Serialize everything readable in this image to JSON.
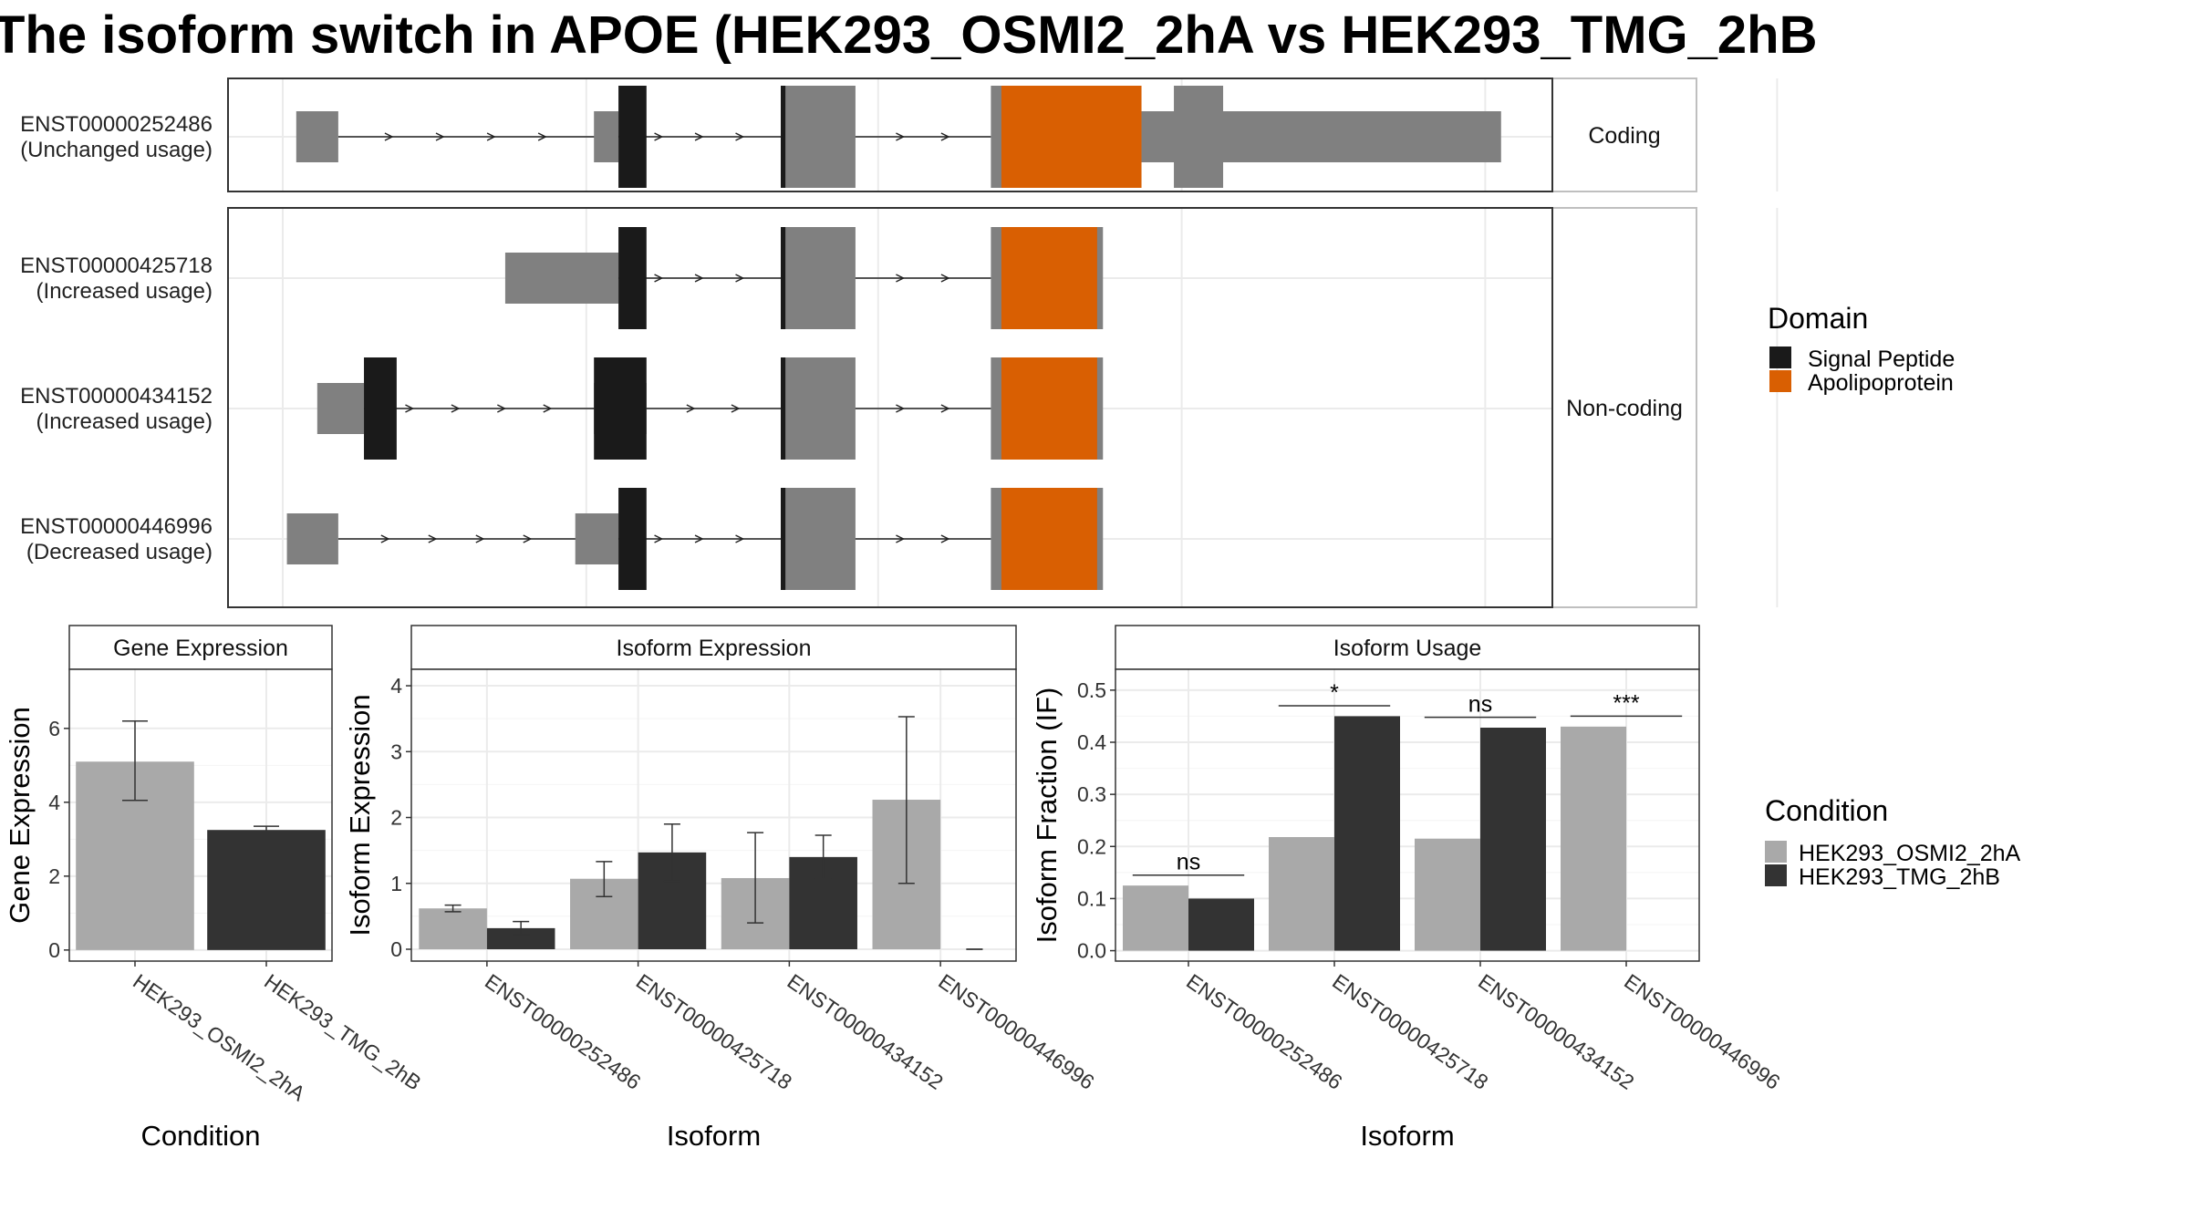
{
  "title": "The isoform switch in APOE (HEK293_OSMI2_2hA vs HEK293_TMG_2hB",
  "colors": {
    "signal_peptide": "#1a1a1a",
    "apolipoprotein": "#d95f02",
    "exon": "#808080",
    "condition_a": "#a9a9a9",
    "condition_b": "#333333",
    "grid": "#ebebeb"
  },
  "chart_data": [
    {
      "type": "gene-structure",
      "legend_title": "Domain",
      "legend": [
        "Signal Peptide",
        "Apolipoprotein"
      ],
      "coordinate_range": [
        0,
        100
      ],
      "groups": [
        {
          "name": "Coding",
          "transcripts": [
            0
          ]
        },
        {
          "name": "Non-coding",
          "transcripts": [
            1,
            2,
            3
          ]
        }
      ],
      "transcripts": [
        {
          "id": "ENST00000252486",
          "usage": "(Unchanged usage)",
          "exons": [
            [
              1.0,
              4.6
            ],
            [
              26.5,
              28.6
            ],
            [
              42.5,
              48.9
            ],
            [
              60.5,
              73.4
            ]
          ],
          "utr": [
            [
              73.4,
              104.2
            ]
          ],
          "domains": [
            {
              "type": "Signal Peptide",
              "range": [
                28.6,
                31.0
              ]
            },
            {
              "type": "Signal Peptide",
              "range": [
                42.5,
                42.9
              ]
            },
            {
              "type": "Apolipoprotein",
              "range": [
                61.4,
                73.4
              ]
            }
          ],
          "thick_until": [
            76.8,
            104.2
          ]
        },
        {
          "id": "ENST00000425718",
          "usage": "(Increased usage)",
          "exons": [
            [
              18.9,
              28.6
            ],
            [
              42.5,
              48.9
            ],
            [
              60.5,
              70.1
            ]
          ],
          "utr": [],
          "domains": [
            {
              "type": "Signal Peptide",
              "range": [
                28.6,
                31.0
              ]
            },
            {
              "type": "Signal Peptide",
              "range": [
                42.5,
                42.9
              ]
            },
            {
              "type": "Apolipoprotein",
              "range": [
                61.4,
                69.6
              ]
            }
          ],
          "thick_until": null
        },
        {
          "id": "ENST00000434152",
          "usage": "(Increased usage)",
          "exons": [
            [
              2.8,
              6.8
            ],
            [
              26.5,
              31.0
            ],
            [
              42.5,
              48.9
            ],
            [
              60.5,
              70.1
            ]
          ],
          "utr": [],
          "domains": [
            {
              "type": "Signal Peptide",
              "range": [
                6.8,
                9.6
              ]
            },
            {
              "type": "Signal Peptide",
              "range": [
                26.5,
                31.0
              ]
            },
            {
              "type": "Signal Peptide",
              "range": [
                42.5,
                42.9
              ]
            },
            {
              "type": "Apolipoprotein",
              "range": [
                61.4,
                69.6
              ]
            }
          ],
          "thick_until": null
        },
        {
          "id": "ENST00000446996",
          "usage": "(Decreased usage)",
          "exons": [
            [
              0.2,
              4.6
            ],
            [
              24.9,
              28.6
            ],
            [
              42.5,
              48.9
            ],
            [
              60.5,
              70.1
            ]
          ],
          "utr": [],
          "domains": [
            {
              "type": "Signal Peptide",
              "range": [
                28.6,
                31.0
              ]
            },
            {
              "type": "Signal Peptide",
              "range": [
                42.5,
                42.9
              ]
            },
            {
              "type": "Apolipoprotein",
              "range": [
                61.4,
                69.6
              ]
            }
          ],
          "thick_until": null
        }
      ]
    },
    {
      "type": "bar",
      "strip": "Gene Expression",
      "xlabel": "Condition",
      "ylabel": "Gene Expression",
      "categories": [
        "HEK293_OSMI2_2hA",
        "HEK293_TMG_2hB"
      ],
      "values": [
        5.1,
        3.25
      ],
      "errors": [
        [
          4.05,
          6.2
        ],
        [
          3.2,
          3.35
        ]
      ],
      "yticks": [
        0,
        2,
        4,
        6
      ],
      "ylim": [
        -0.3,
        7.6
      ]
    },
    {
      "type": "bar",
      "strip": "Isoform Expression",
      "xlabel": "Isoform",
      "ylabel": "Isoform Expression",
      "categories": [
        "ENST00000252486",
        "ENST00000425718",
        "ENST00000434152",
        "ENST00000446996"
      ],
      "series": [
        {
          "name": "HEK293_OSMI2_2hA",
          "values": [
            0.62,
            1.07,
            1.08,
            2.27
          ],
          "errors": [
            [
              0.57,
              0.67
            ],
            [
              0.8,
              1.33
            ],
            [
              0.4,
              1.77
            ],
            [
              1.0,
              3.53
            ]
          ]
        },
        {
          "name": "HEK293_TMG_2hB",
          "values": [
            0.32,
            1.47,
            1.4,
            0.0
          ],
          "errors": [
            [
              0.22,
              0.42
            ],
            [
              1.03,
              1.9
            ],
            [
              1.07,
              1.73
            ],
            [
              0.0,
              0.0
            ]
          ]
        }
      ],
      "yticks": [
        0,
        1,
        2,
        3,
        4
      ],
      "ylim": [
        -0.18,
        4.25
      ]
    },
    {
      "type": "bar",
      "strip": "Isoform Usage",
      "xlabel": "Isoform",
      "ylabel": "Isoform Fraction (IF)",
      "categories": [
        "ENST00000252486",
        "ENST00000425718",
        "ENST00000434152",
        "ENST00000446996"
      ],
      "series": [
        {
          "name": "HEK293_OSMI2_2hA",
          "values": [
            0.125,
            0.218,
            0.215,
            0.43
          ]
        },
        {
          "name": "HEK293_TMG_2hB",
          "values": [
            0.1,
            0.45,
            0.428,
            0.0
          ]
        }
      ],
      "significance": [
        "ns",
        "*",
        "ns",
        "***"
      ],
      "yticks": [
        "0.0",
        "0.1",
        "0.2",
        "0.3",
        "0.4",
        "0.5"
      ],
      "ylim": [
        -0.02,
        0.54
      ]
    }
  ],
  "legend_condition": {
    "title": "Condition",
    "items": [
      "HEK293_OSMI2_2hA",
      "HEK293_TMG_2hB"
    ]
  }
}
